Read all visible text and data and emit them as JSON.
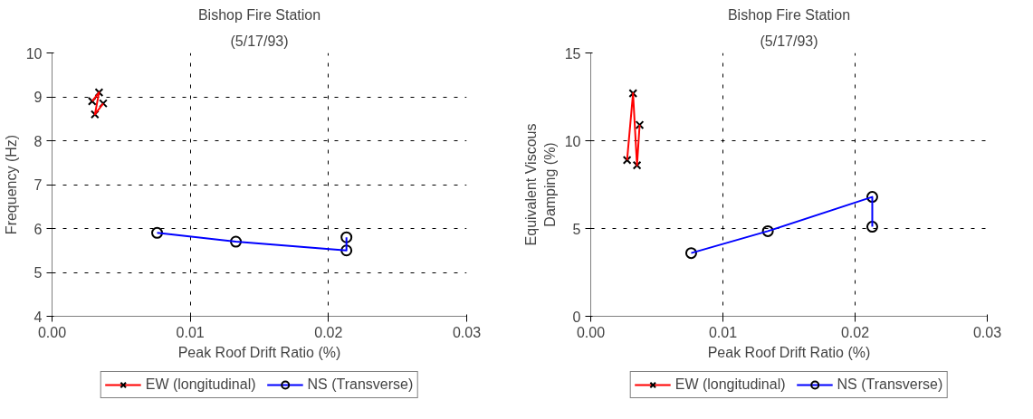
{
  "chart_data": [
    {
      "type": "line",
      "title": "Bishop Fire Station",
      "subtitle": "(5/17/93)",
      "xlabel": "Peak Roof Drift Ratio (%)",
      "ylabel": "Frequency (Hz)",
      "xlim": [
        0,
        0.03
      ],
      "xticks": [
        {
          "value": 0,
          "label": "0.00"
        },
        {
          "value": 0.01,
          "label": "0.01"
        },
        {
          "value": 0.02,
          "label": "0.02"
        },
        {
          "value": 0.03,
          "label": "0.03"
        }
      ],
      "ylim": [
        4,
        10
      ],
      "yticks": [
        4,
        5,
        6,
        7,
        8,
        9,
        10
      ],
      "grid": true,
      "legend": "bottom",
      "series": [
        {
          "name": "EW (longitudinal)",
          "color": "#ff0000",
          "marker": "cross",
          "x": [
            0.0029,
            0.0034,
            0.0031,
            0.0037
          ],
          "values": [
            8.9,
            9.1,
            8.6,
            8.85
          ]
        },
        {
          "name": "NS (Transverse)",
          "color": "#0000ff",
          "marker": "circle",
          "x": [
            0.0076,
            0.0133,
            0.0213,
            0.0213
          ],
          "values": [
            5.9,
            5.7,
            5.5,
            5.8
          ]
        }
      ]
    },
    {
      "type": "line",
      "title": "Bishop Fire Station",
      "subtitle": "(5/17/93)",
      "xlabel": "Peak Roof Drift Ratio (%)",
      "ylabel": "Equivalent Viscous Damping (%)",
      "xlim": [
        0,
        0.03
      ],
      "xticks": [
        {
          "value": 0,
          "label": "0.00"
        },
        {
          "value": 0.01,
          "label": "0.01"
        },
        {
          "value": 0.02,
          "label": "0.02"
        },
        {
          "value": 0.03,
          "label": "0.03"
        }
      ],
      "ylim": [
        0,
        15
      ],
      "yticks": [
        0,
        5,
        10,
        15
      ],
      "grid": true,
      "legend": "bottom",
      "series": [
        {
          "name": "EW (longitudinal)",
          "color": "#ff0000",
          "marker": "cross",
          "x": [
            0.00275,
            0.0032,
            0.0035,
            0.0037
          ],
          "values": [
            8.9,
            12.7,
            8.6,
            10.9
          ]
        },
        {
          "name": "NS (Transverse)",
          "color": "#0000ff",
          "marker": "circle",
          "x": [
            0.0076,
            0.0134,
            0.0213,
            0.0213
          ],
          "values": [
            3.6,
            4.85,
            6.8,
            5.1
          ]
        }
      ]
    }
  ]
}
